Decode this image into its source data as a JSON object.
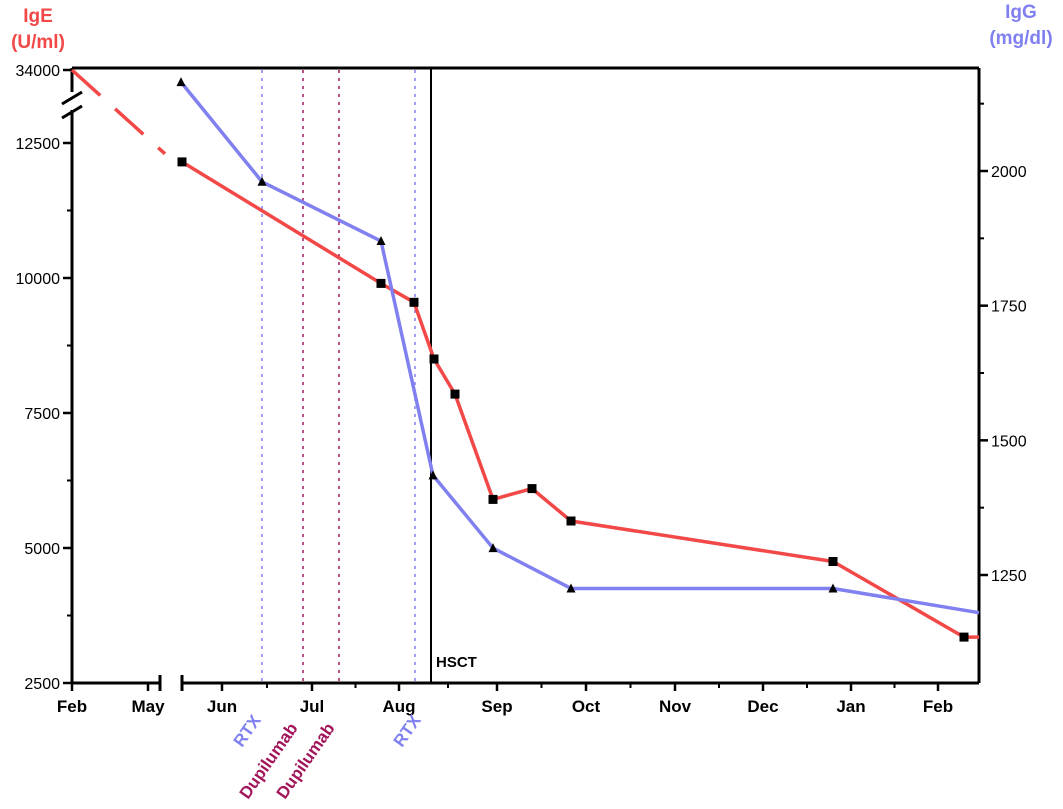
{
  "chart_data": {
    "type": "line",
    "x_ticks": [
      "Feb",
      "May",
      "Jun",
      "Jul",
      "Aug",
      "Sep",
      "Oct",
      "Nov",
      "Dec",
      "Jan",
      "Feb"
    ],
    "y_left": {
      "label_line1": "IgE",
      "label_line2": "(U/ml)",
      "ticks": [
        "2500",
        "5000",
        "7500",
        "10000",
        "12500",
        "34000"
      ],
      "break_value": "34000",
      "color": "#f24848"
    },
    "y_right": {
      "label_line1": "IgG",
      "label_line2": "(mg/dl)",
      "ticks": [
        "1250",
        "1500",
        "1750",
        "2000"
      ],
      "range": [
        1100,
        2200
      ],
      "color": "#8080f0"
    },
    "series": [
      {
        "axis": "left",
        "marker": "square",
        "color": "#f24848",
        "points": [
          {
            "x": "Feb",
            "y": 34000,
            "marker": false
          },
          {
            "x": "May",
            "y": 12300,
            "marker": false
          },
          {
            "x": "Jun",
            "y": 12150
          },
          {
            "x": "Jun",
            "y": 9900
          },
          {
            "x": "Aug",
            "y": 9550
          },
          {
            "x": "Aug",
            "y": 8500
          },
          {
            "x": "Aug",
            "y": 7850
          },
          {
            "x": "Sep",
            "y": 5900
          },
          {
            "x": "Sep",
            "y": 6100
          },
          {
            "x": "Sep",
            "y": 5500
          },
          {
            "x": "Dec",
            "y": 4750
          },
          {
            "x": "Feb",
            "y": 3350
          },
          {
            "x": "Feb",
            "y": 3350,
            "marker": false
          }
        ]
      },
      {
        "axis": "right",
        "marker": "triangle",
        "color": "#8080f0",
        "points": [
          {
            "x": "May",
            "y": 2165
          },
          {
            "x": "Jun",
            "y": 1980
          },
          {
            "x": "Jul",
            "y": 1870
          },
          {
            "x": "Aug",
            "y": 1435
          },
          {
            "x": "Sep",
            "y": 1300
          },
          {
            "x": "Sep",
            "y": 1225
          },
          {
            "x": "Dec",
            "y": 1225
          },
          {
            "x": "Feb",
            "y": 1180,
            "marker": false
          }
        ]
      }
    ],
    "events": [
      {
        "label": "RTX",
        "color": "#8080f0"
      },
      {
        "label": "Dupilumab",
        "color": "#a3155a"
      },
      {
        "label": "Dupilumab",
        "color": "#a3155a"
      },
      {
        "label": "RTX",
        "color": "#8080f0"
      }
    ],
    "hsct": {
      "label": "HSCT"
    },
    "grid": false
  }
}
